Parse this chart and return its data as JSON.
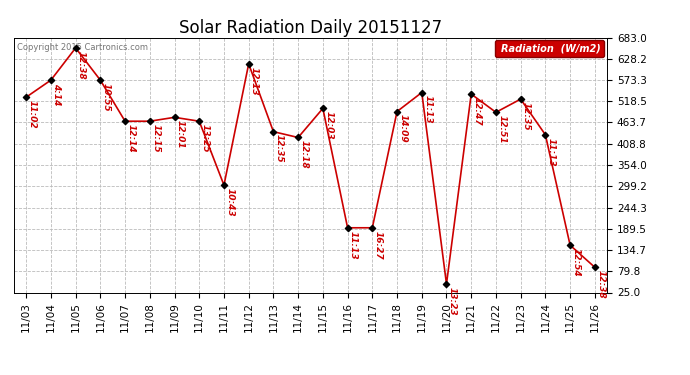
{
  "title": "Solar Radiation Daily 20151127",
  "copyright": "Copyright 2015 Cartronics.com",
  "ylim": [
    25.0,
    683.0
  ],
  "yticks": [
    25.0,
    79.8,
    134.7,
    189.5,
    244.3,
    299.2,
    354.0,
    408.8,
    463.7,
    518.5,
    573.3,
    628.2,
    683.0
  ],
  "dates": [
    "11/03",
    "11/04",
    "11/05",
    "11/06",
    "11/07",
    "11/08",
    "11/09",
    "11/10",
    "11/11",
    "11/12",
    "11/13",
    "11/14",
    "11/15",
    "11/16",
    "11/17",
    "11/18",
    "11/19",
    "11/20",
    "11/21",
    "11/22",
    "11/23",
    "11/24",
    "11/25",
    "11/26"
  ],
  "values": [
    529,
    573,
    656,
    573,
    467,
    467,
    477,
    467,
    302,
    615,
    440,
    425,
    500,
    192,
    192,
    492,
    541,
    47,
    537,
    490,
    524,
    432,
    147,
    90
  ],
  "time_labels": [
    "11:02",
    "4:14",
    "12:38",
    "10:55",
    "12:14",
    "12:15",
    "12:01",
    "13:25",
    "10:43",
    "12:13",
    "12:35",
    "12:18",
    "12:03",
    "11:13",
    "16:27",
    "14:09",
    "11:13",
    "13:23",
    "12:47",
    "12:51",
    "12:35",
    "11:13",
    "12:54",
    "12:38"
  ],
  "line_color": "#cc0000",
  "marker_color": "#000000",
  "grid_color": "#bbbbbb",
  "bg_color": "#ffffff",
  "legend_bg": "#cc0000",
  "legend_text": "Radiation  (W/m2)",
  "title_fontsize": 12,
  "label_fontsize": 7.5,
  "annotation_fontsize": 6.5,
  "copyright_fontsize": 6.0
}
